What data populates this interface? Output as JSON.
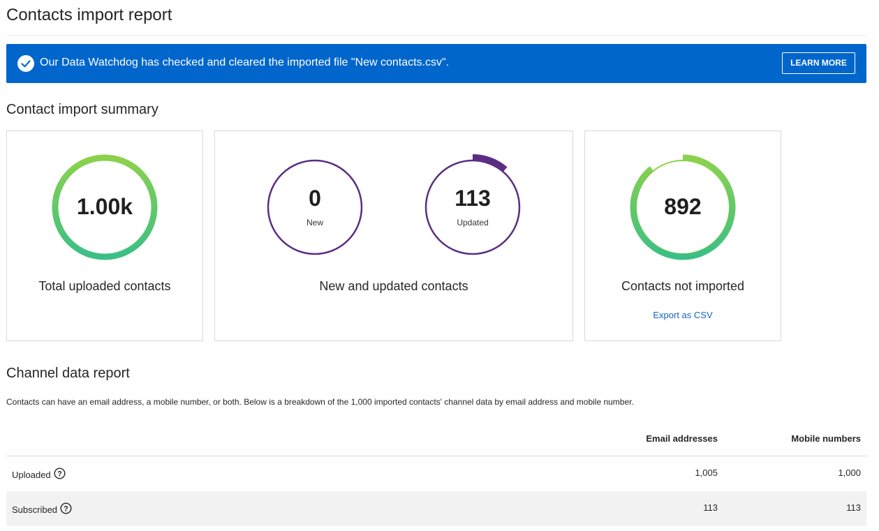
{
  "page": {
    "title": "Contacts import report"
  },
  "banner": {
    "message": "Our Data Watchdog has checked and cleared the imported file \"New contacts.csv\".",
    "button": "LEARN MORE",
    "color": "#0066cc"
  },
  "summary": {
    "title": "Contact import summary",
    "total": {
      "value": "1.00k",
      "label": "Total uploaded contacts",
      "fraction": 1.0
    },
    "new_updated": {
      "label": "New and updated contacts",
      "new": {
        "value": "0",
        "label": "New",
        "fraction": 0
      },
      "updated": {
        "value": "113",
        "label": "Updated",
        "fraction": 0.113
      }
    },
    "not_imported": {
      "value": "892",
      "label": "Contacts not imported",
      "link": "Export as CSV",
      "fraction": 0.892
    }
  },
  "channel": {
    "title": "Channel data report",
    "description": "Contacts can have an email address, a mobile number, or both. Below is a breakdown of the 1,000 imported contacts' channel data by email address and mobile number.",
    "columns": [
      "Email addresses",
      "Mobile numbers"
    ],
    "rows": [
      {
        "label": "Uploaded",
        "email": "1,005",
        "mobile": "1,000"
      },
      {
        "label": "Subscribed",
        "email": "113",
        "mobile": "113"
      }
    ]
  },
  "colors": {
    "ring_green_top": "#8bd24c",
    "ring_green_bottom": "#3bbf86",
    "ring_purple": "#5a2d82",
    "link": "#1565c0"
  }
}
